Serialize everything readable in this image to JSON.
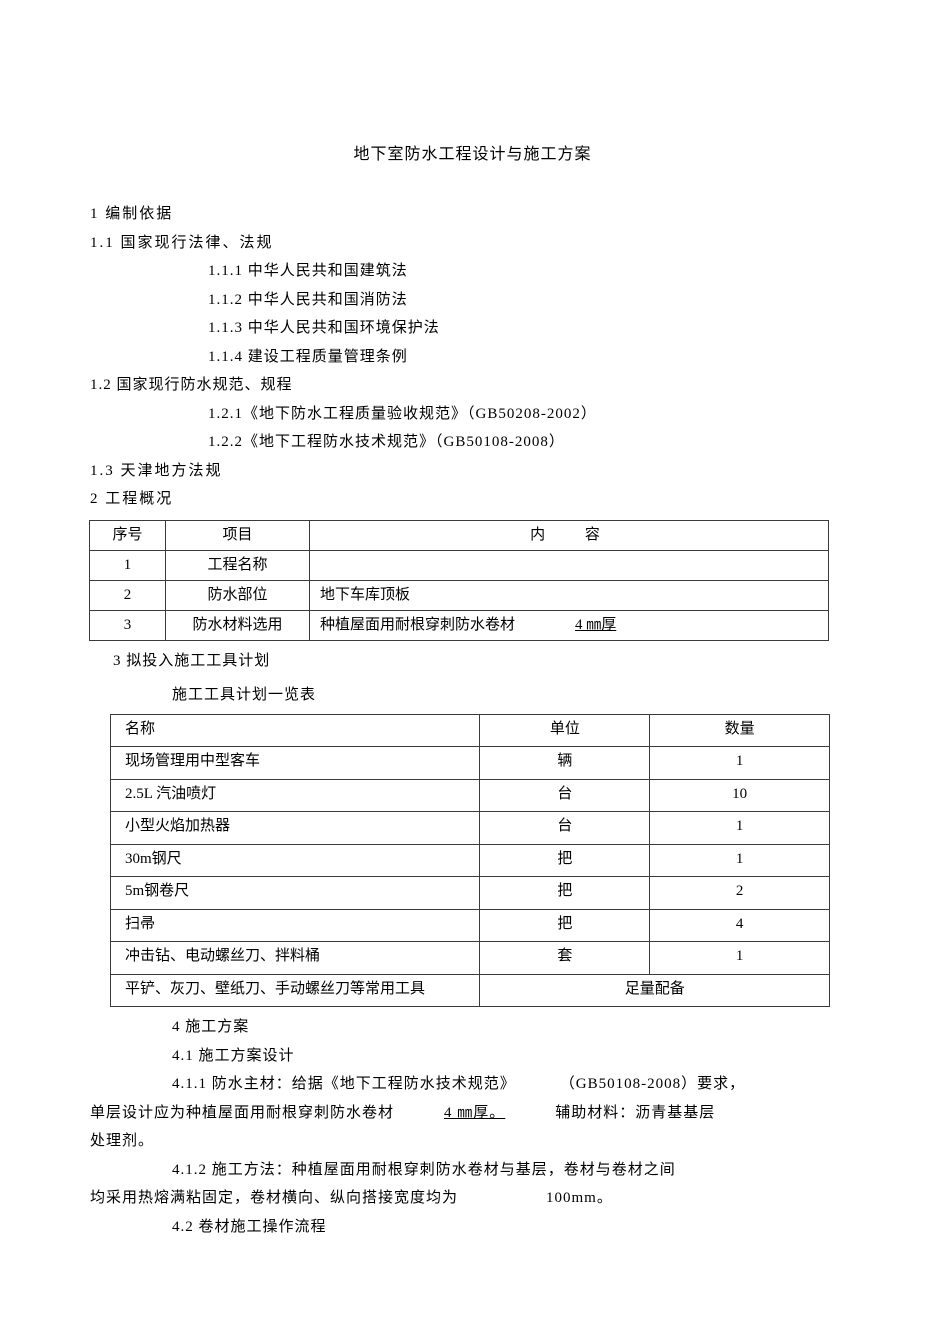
{
  "title": "地下室防水工程设计与施工方案",
  "s1": "1  编制依据",
  "s11": "1.1  国家现行法律、法规",
  "s11_items": {
    "i1": "1.1.1 中华人民共和国建筑法",
    "i2": "1.1.2 中华人民共和国消防法",
    "i3": "1.1.3 中华人民共和国环境保护法",
    "i4": "1.1.4 建设工程质量管理条例"
  },
  "s12": "1.2 国家现行防水规范、规程",
  "s12_items": {
    "i1": "1.2.1《地下防水工程质量验收规范》（GB50208-2002）",
    "i2": "1.2.2《地下工程防水技术规范》（GB50108-2008）"
  },
  "s13": "1.3  天津地方法规",
  "s2": "2  工程概况",
  "table1": {
    "hdr": {
      "a": "序号",
      "b": "项目",
      "c": "内 容"
    },
    "rows": {
      "r1": {
        "a": "1",
        "b": "工程名称",
        "c": ""
      },
      "r2": {
        "a": "2",
        "b": "防水部位",
        "c": "地下车库顶板"
      },
      "r3": {
        "a": "3",
        "b": "防水材料选用",
        "c1": "种植屋面用耐根穿刺防水卷材",
        "c2": "4 ㎜厚"
      }
    }
  },
  "s3": "3 拟投入施工工具计划",
  "s3_sub": "施工工具计划一览表",
  "table2": {
    "hdr": {
      "n": "名称",
      "u": "单位",
      "q": "数量"
    },
    "rows": {
      "r1": {
        "n": "现场管理用中型客车",
        "u": "辆",
        "q": "1"
      },
      "r2": {
        "n": "2.5L 汽油喷灯",
        "u": "台",
        "q": "10"
      },
      "r3": {
        "n": "小型火焰加热器",
        "u": "台",
        "q": "1"
      },
      "r4": {
        "n": "30m钢尺",
        "u": "把",
        "q": "1"
      },
      "r5": {
        "n": "5m钢卷尺",
        "u": "把",
        "q": "2"
      },
      "r6": {
        "n": "扫帚",
        "u": "把",
        "q": "4"
      },
      "r7": {
        "n": "冲击钻、电动螺丝刀、拌料桶",
        "u": "套",
        "q": "1"
      },
      "r8": {
        "n": "平铲、灰刀、壁纸刀、手动螺丝刀等常用工具",
        "q": "足量配备"
      }
    }
  },
  "s4": "4  施工方案",
  "s41": "4.1 施工方案设计",
  "s411_a": "4.1.1   防水主材：给据《地下工程防水技术规范》",
  "s411_b": "（GB50108-2008）要求，",
  "s411_line2_a": "单层设计应为种植屋面用耐根穿刺防水卷材",
  "s411_line2_b": "4 ㎜厚。",
  "s411_line2_c": "辅助材料：沥青基基层",
  "s411_line3": "处理剂。",
  "s412_a": "4.1.2   施工方法：种植屋面用耐根穿刺防水卷材与基层，卷材与卷材之间",
  "s412_line2_a": "均采用热熔满粘固定，卷材横向、纵向搭接宽度均为",
  "s412_line2_b": "100mm。",
  "s42": "4.2  卷材施工操作流程"
}
